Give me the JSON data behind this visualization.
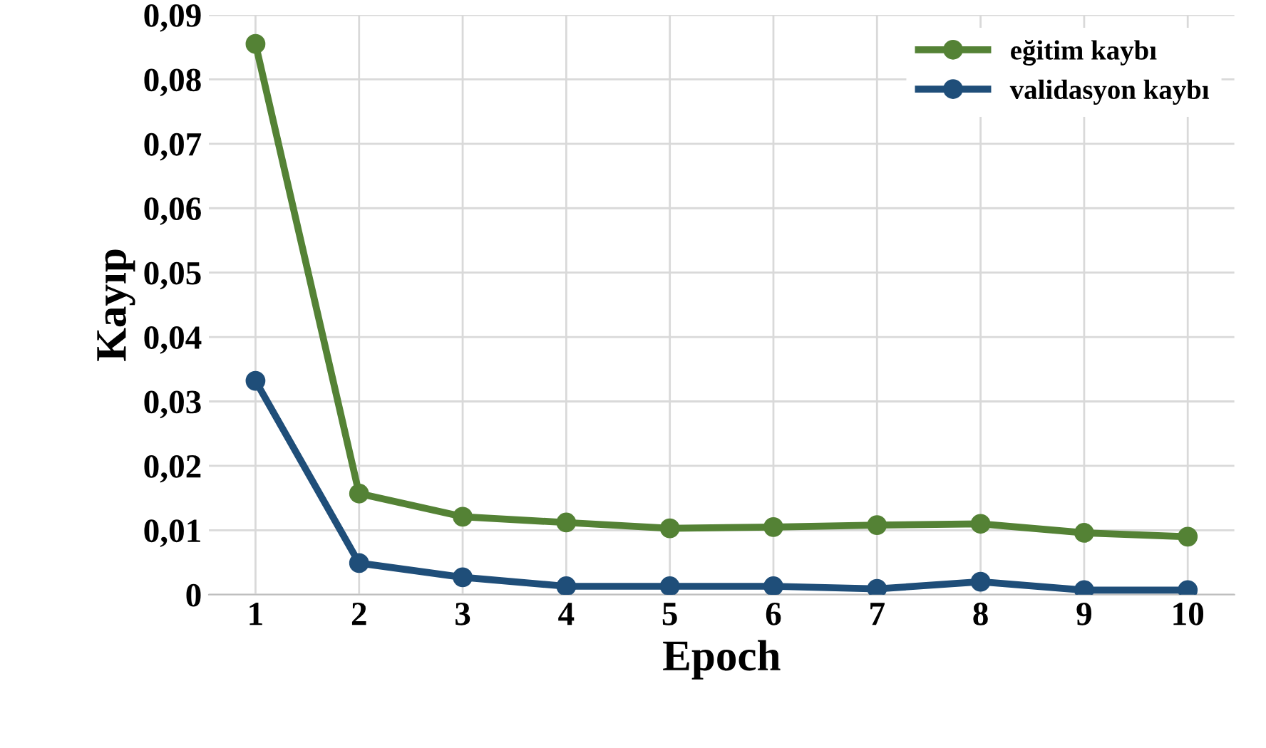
{
  "chart_data": {
    "type": "line",
    "xlabel": "Epoch",
    "ylabel": "Kayıp",
    "categories": [
      "1",
      "2",
      "3",
      "4",
      "5",
      "6",
      "7",
      "8",
      "9",
      "10"
    ],
    "series": [
      {
        "name": "eğitim kaybı",
        "color": "#548235",
        "values": [
          0.0855,
          0.0157,
          0.0121,
          0.0112,
          0.0103,
          0.0105,
          0.0108,
          0.011,
          0.0096,
          0.009
        ]
      },
      {
        "name": "validasyon kaybı",
        "color": "#1f4e79",
        "values": [
          0.0332,
          0.0049,
          0.0027,
          0.0013,
          0.0013,
          0.0013,
          0.0009,
          0.002,
          0.0007,
          0.0007
        ]
      }
    ],
    "ylim": [
      0,
      0.09
    ],
    "yticks": [
      0,
      {
        "value": 0.01,
        "label": "0,01"
      },
      {
        "value": 0.02,
        "label": "0,02"
      },
      {
        "value": 0.03,
        "label": "0,03"
      },
      {
        "value": 0.04,
        "label": "0,04"
      },
      {
        "value": 0.05,
        "label": "0,05"
      },
      {
        "value": 0.06,
        "label": "0,06"
      },
      {
        "value": 0.07,
        "label": "0,07"
      },
      {
        "value": 0.08,
        "label": "0,08"
      },
      {
        "value": 0.09,
        "label": "0,09"
      }
    ],
    "grid": true,
    "legend": "top right",
    "marker": "circle",
    "line_style": "solid"
  }
}
